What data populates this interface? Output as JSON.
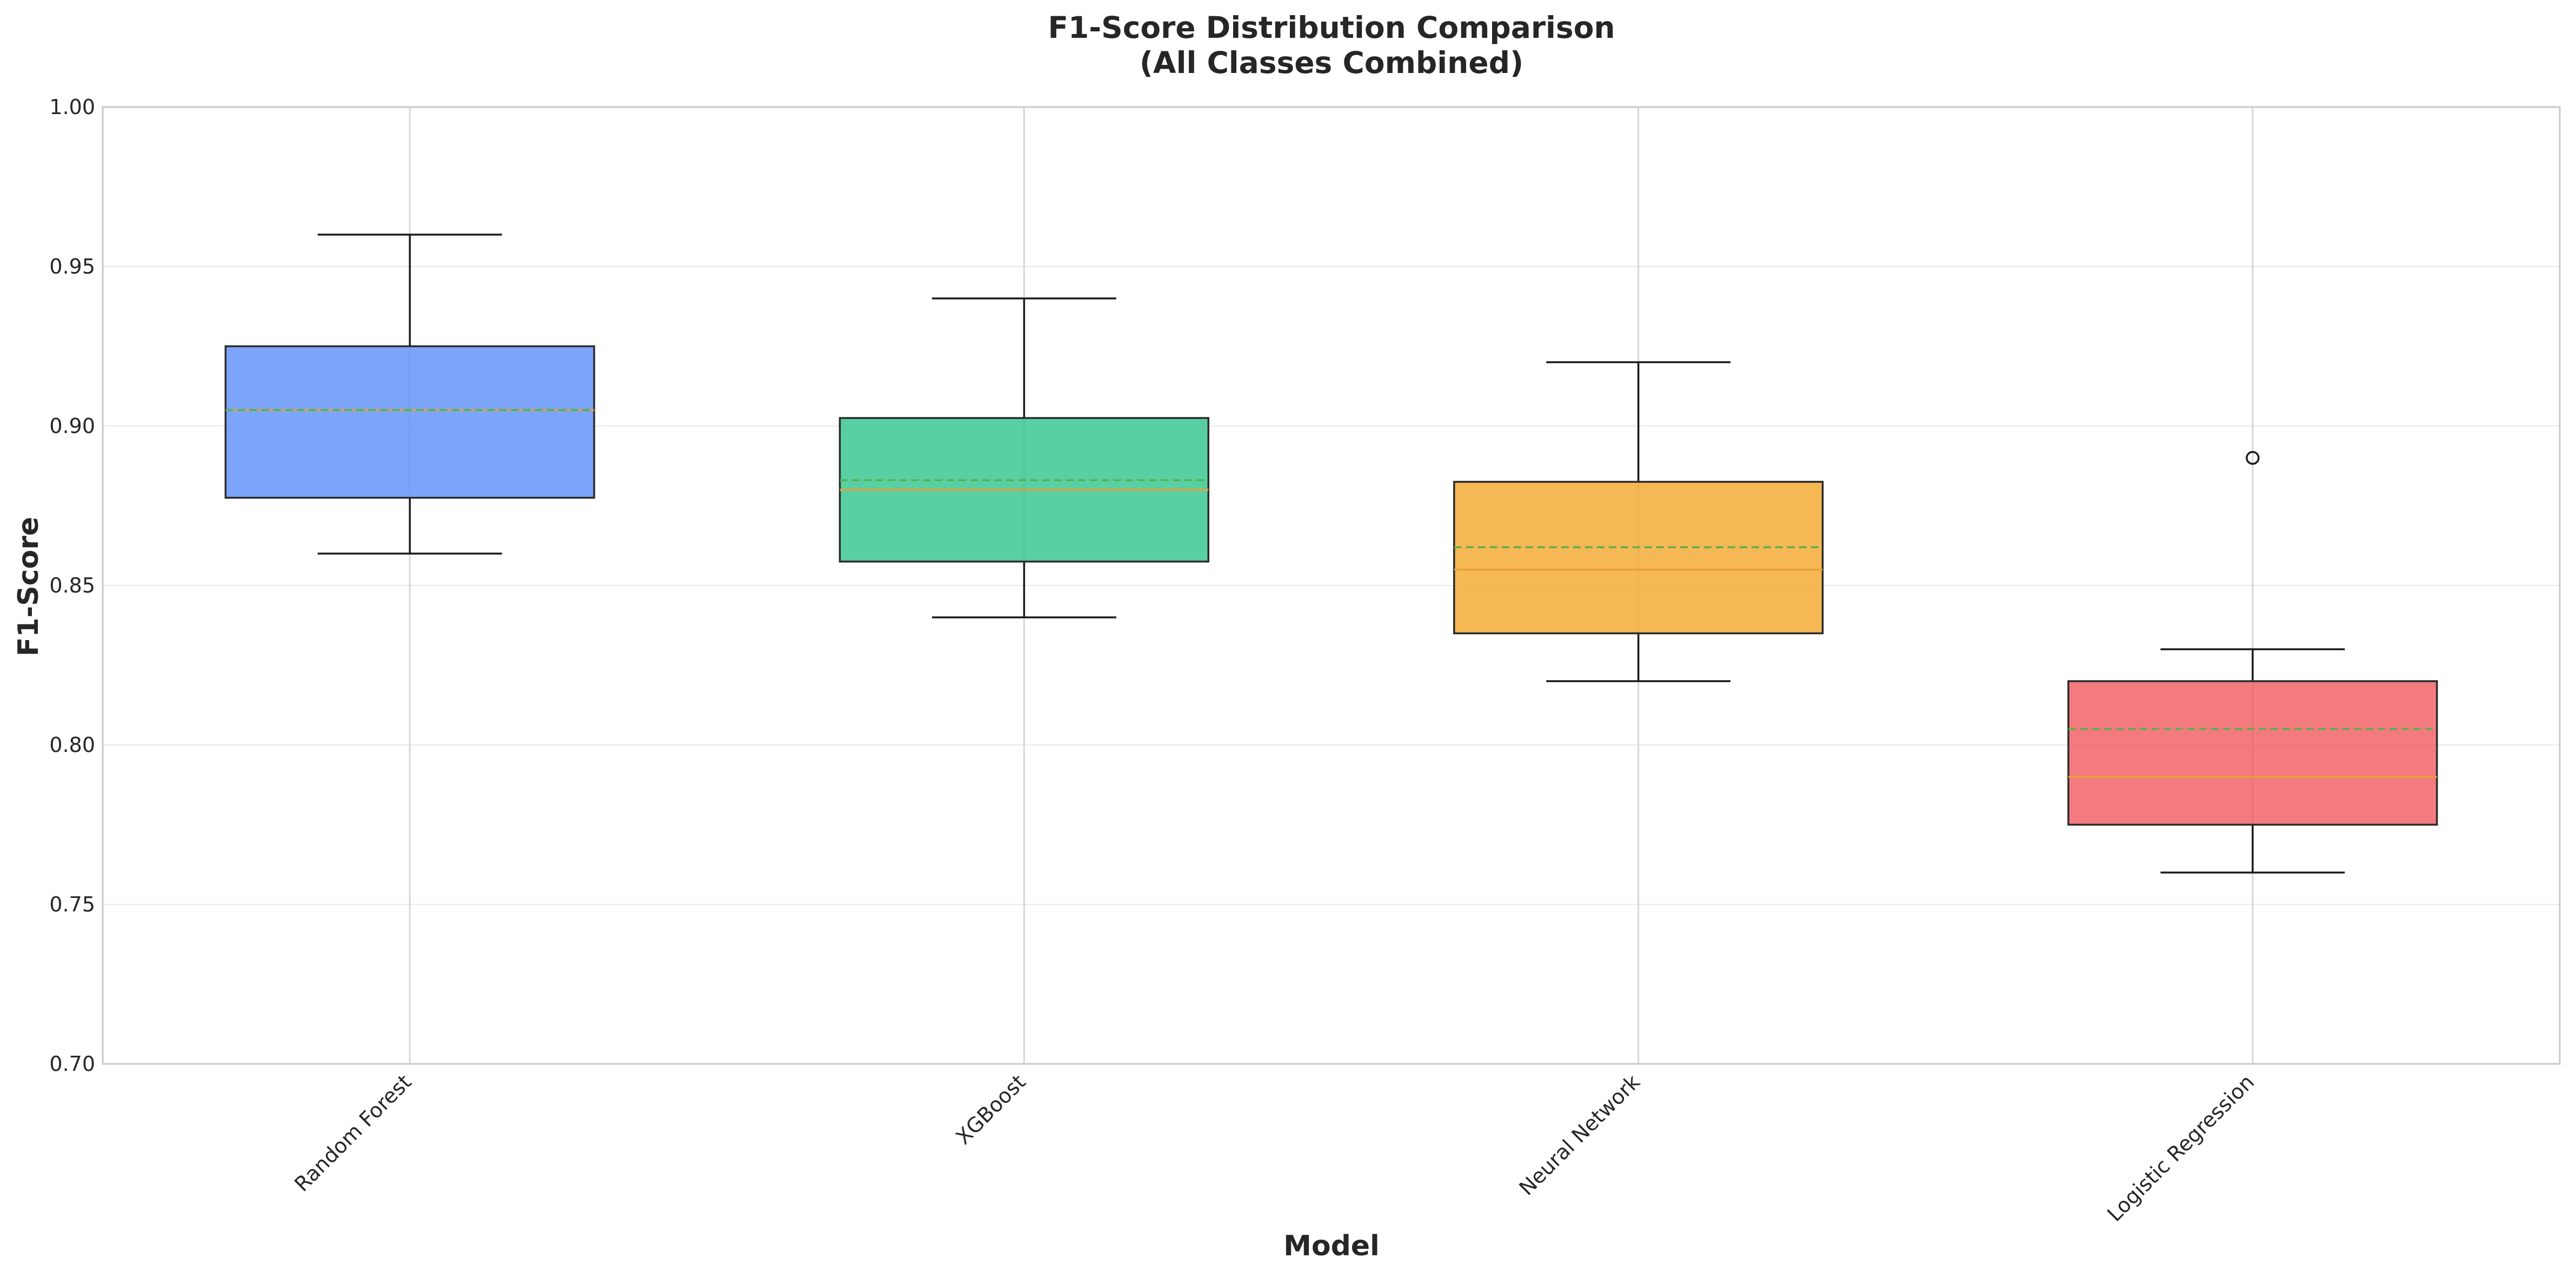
{
  "chart_data": {
    "type": "box",
    "title_lines": [
      "F1-Score Distribution Comparison",
      "(All Classes Combined)"
    ],
    "xlabel": "Model",
    "ylabel": "F1-Score",
    "ylim": [
      0.7,
      1.0
    ],
    "yticks": [
      "0.70",
      "0.75",
      "0.80",
      "0.85",
      "0.90",
      "0.95",
      "1.00"
    ],
    "ytick_values": [
      0.7,
      0.75,
      0.8,
      0.85,
      0.9,
      0.95,
      1.0
    ],
    "grid": true,
    "categories": [
      "Random Forest",
      "XGBoost",
      "Neural Network",
      "Logistic Regression"
    ],
    "boxes": [
      {
        "category": "Random Forest",
        "whisker_low": 0.86,
        "q1": 0.8775,
        "median": 0.905,
        "mean": 0.905,
        "q3": 0.925,
        "whisker_high": 0.96,
        "outliers": [],
        "color": "#5b8ff9"
      },
      {
        "category": "XGBoost",
        "whisker_low": 0.84,
        "q1": 0.8575,
        "median": 0.88,
        "mean": 0.883,
        "q3": 0.9025,
        "whisker_high": 0.94,
        "outliers": [],
        "color": "#2ec48d"
      },
      {
        "category": "Neural Network",
        "whisker_low": 0.82,
        "q1": 0.835,
        "median": 0.855,
        "mean": 0.862,
        "q3": 0.8825,
        "whisker_high": 0.92,
        "outliers": [],
        "color": "#f4a62a"
      },
      {
        "category": "Logistic Regression",
        "whisker_low": 0.76,
        "q1": 0.775,
        "median": 0.79,
        "mean": 0.805,
        "q3": 0.82,
        "whisker_high": 0.83,
        "outliers": [
          0.89
        ],
        "color": "#f05a5f"
      }
    ],
    "median_color": "#e5a13a",
    "mean_color": "#5aaf4a"
  }
}
